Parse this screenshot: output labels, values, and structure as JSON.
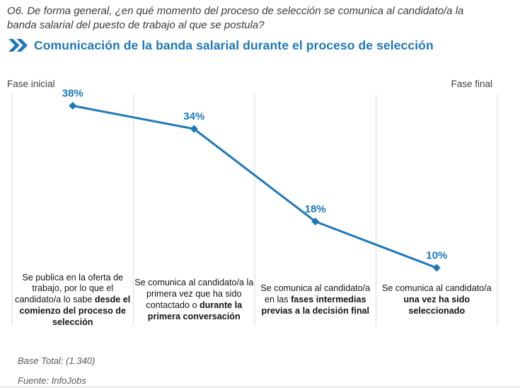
{
  "header": {
    "question_lines": [
      "O6. De forma general, ¿en qué momento del proceso de selección se comunica al candidato/a la",
      "banda salarial del puesto de trabajo al que se postula?"
    ],
    "title": "Comunicación de la banda salarial durante el proceso de selección"
  },
  "chart_data": {
    "type": "line",
    "title": "Comunicación de la banda salarial durante el proceso de selección",
    "values": [
      38,
      34,
      18,
      10
    ],
    "value_labels": [
      "38%",
      "34%",
      "18%",
      "10%"
    ],
    "categories": [
      "Se publica en la oferta de trabajo, por lo que el candidato/a lo sabe desde el comienzo del proceso de selección",
      "Se comunica al candidato/a la primera vez que ha sido contactado o durante la primera conversación",
      "Se comunica al candidato/a en las fases intermedias previas a la decisión final",
      "Se comunica al candidato/a una vez ha sido seleccionado"
    ],
    "categories_rich": [
      [
        {
          "t": "Se publica en la oferta de trabajo, por lo que el candidato/a lo sabe ",
          "b": false
        },
        {
          "t": "desde el comienzo del proceso de selección",
          "b": true
        }
      ],
      [
        {
          "t": "Se comunica al candidato/a la primera vez que ha sido contactado o ",
          "b": false
        },
        {
          "t": "durante la primera conversación",
          "b": true
        }
      ],
      [
        {
          "t": "Se comunica al candidato/a en las ",
          "b": false
        },
        {
          "t": "fases intermedias previas a la decisión final",
          "b": true
        }
      ],
      [
        {
          "t": "Se comunica al candidato/a ",
          "b": false
        },
        {
          "t": "una vez ha sido seleccionado",
          "b": true
        }
      ]
    ],
    "axis_left_label": "Fase inicial",
    "axis_right_label": "Fase final",
    "ylim": [
      0,
      40
    ],
    "grid": "vertical-only",
    "legend": "none",
    "marker": "diamond",
    "line_color": "#1d78ba"
  },
  "footer": {
    "base_total": "Base Total: (1.340)",
    "fuente": "Fuente: InfoJobs"
  },
  "colors": {
    "accent": "#1d78ba",
    "grid": "#d9d9d9",
    "question_text": "#3c3c3c",
    "muted_text": "#595959"
  }
}
